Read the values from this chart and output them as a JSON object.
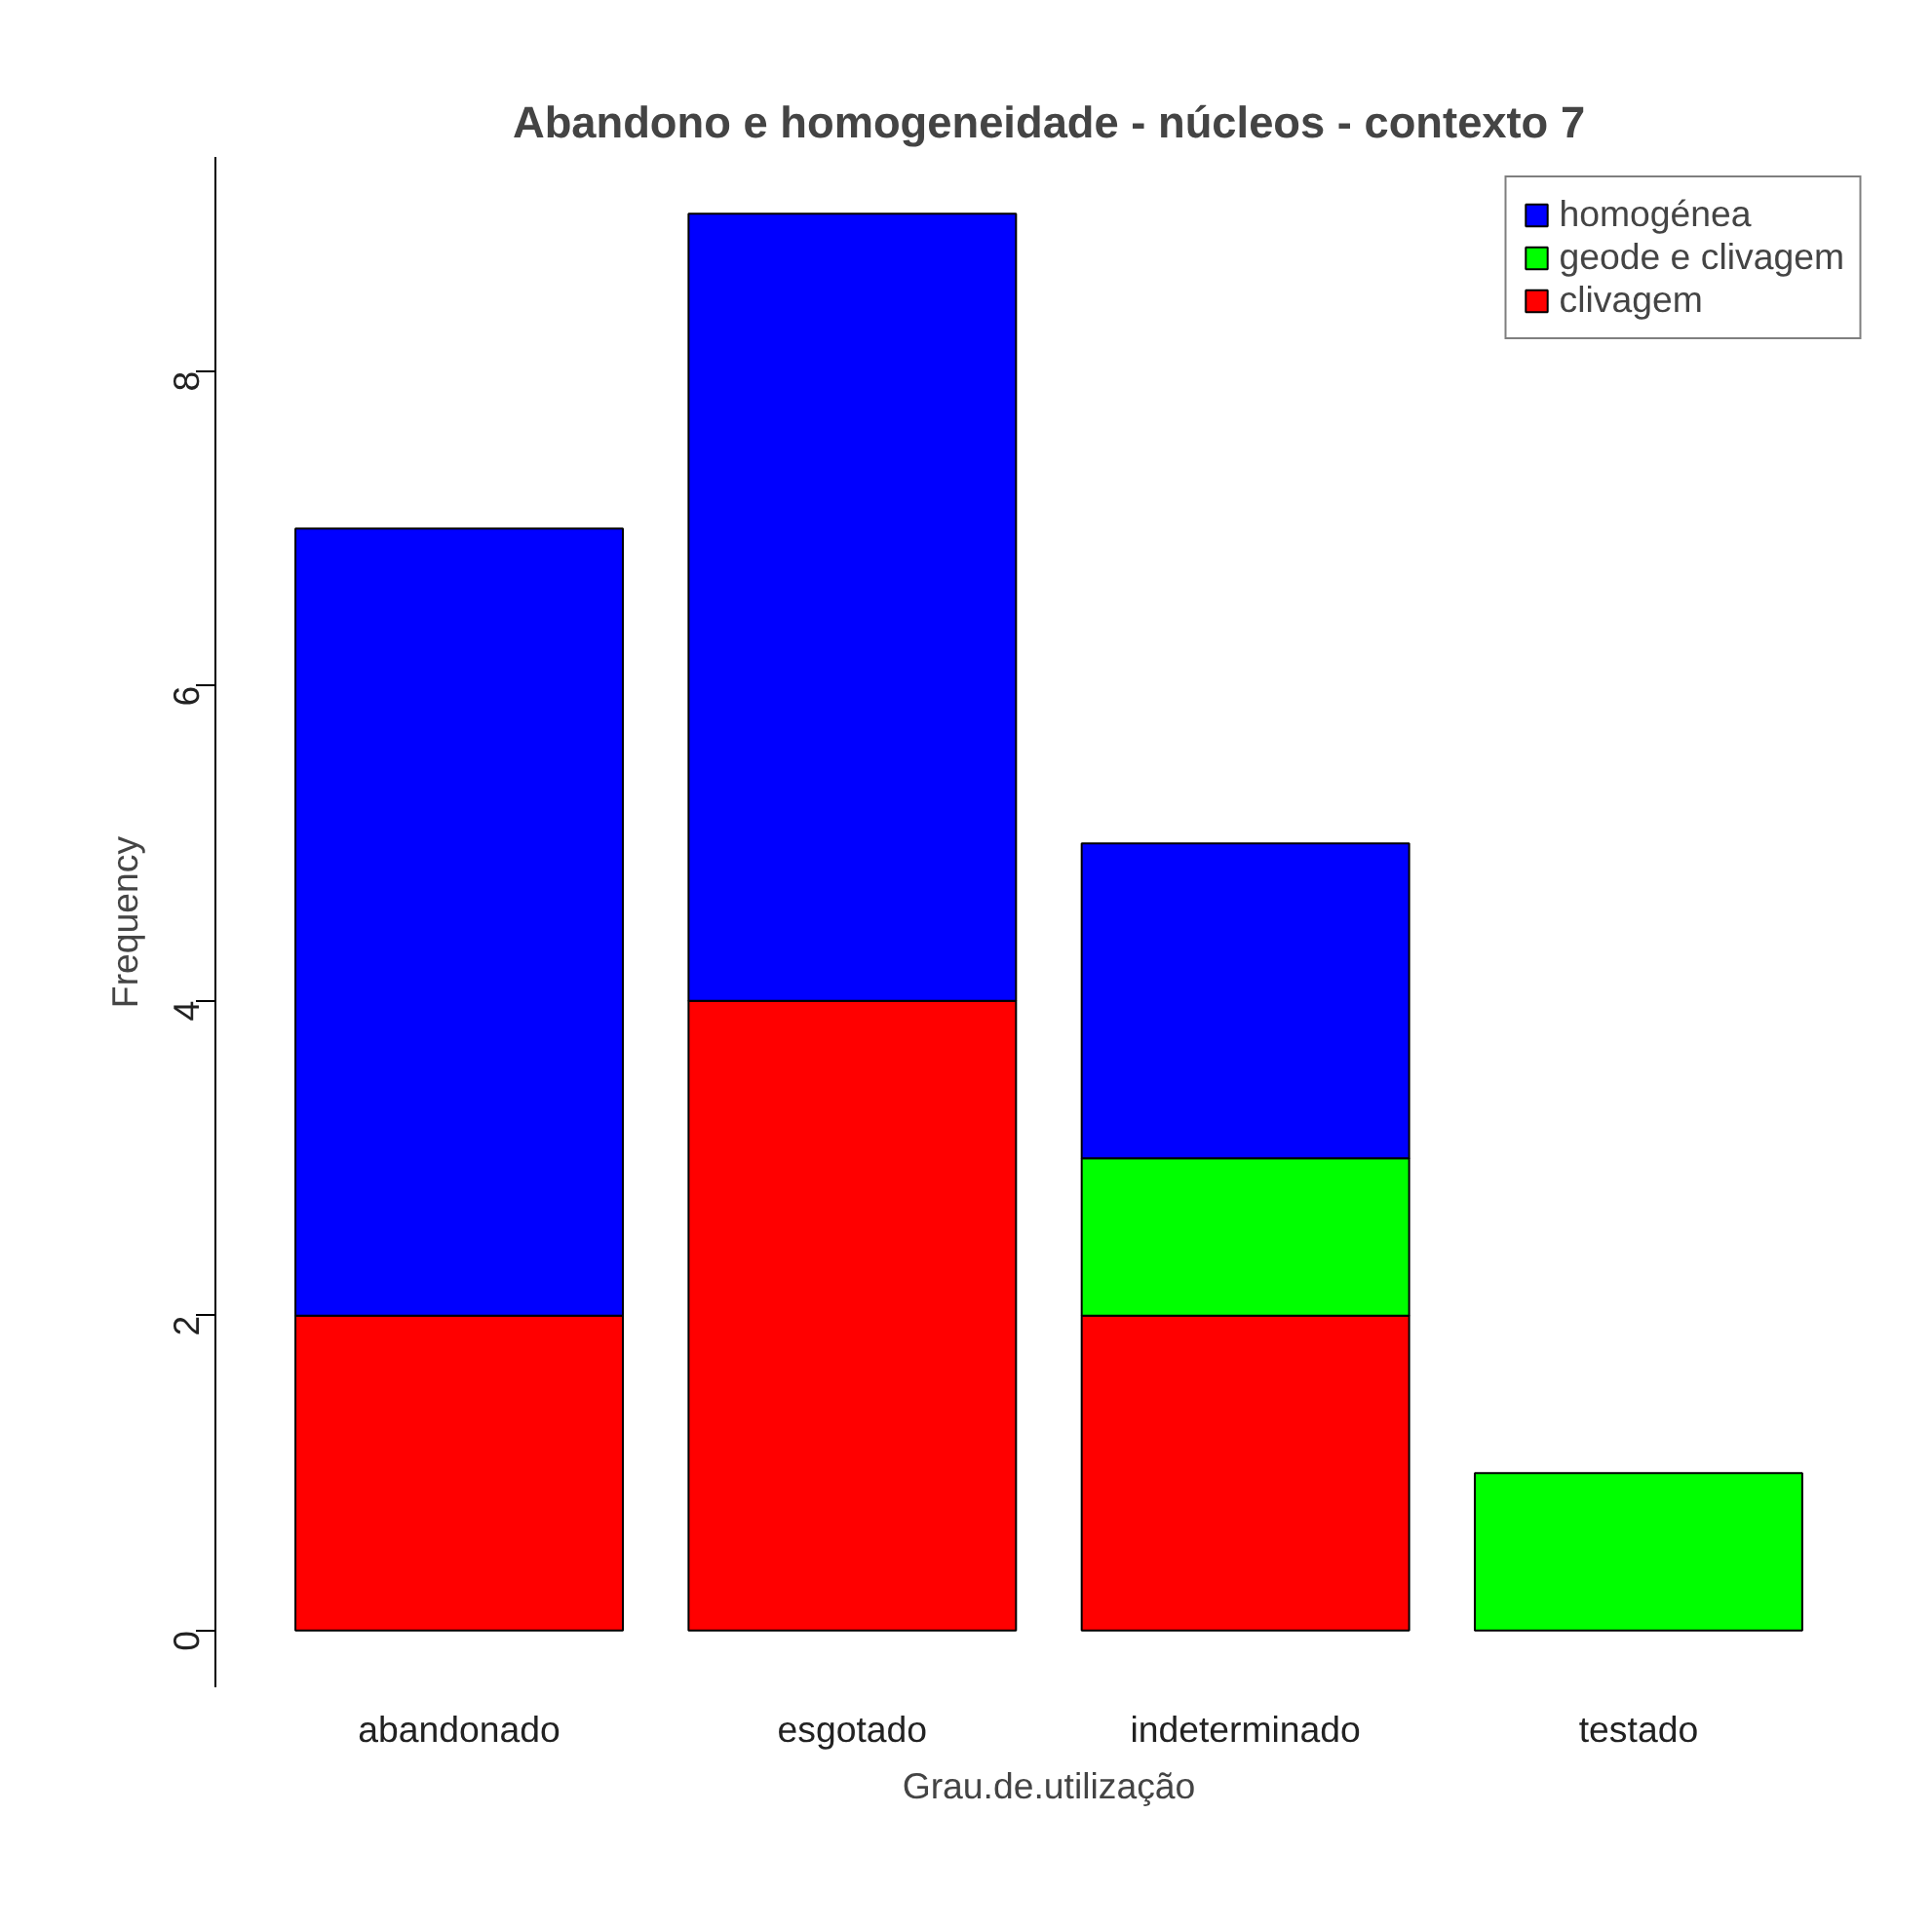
{
  "chart_data": {
    "type": "bar",
    "stacked": true,
    "title": "Abandono e homogeneidade - núcleos - contexto 7",
    "xlabel": "Grau.de.utilização",
    "ylabel": "Frequency",
    "categories": [
      "abandonado",
      "esgotado",
      "indeterminado",
      "testado"
    ],
    "series": [
      {
        "name": "clivagem",
        "color": "#ff0000",
        "values": [
          2,
          4,
          2,
          0
        ]
      },
      {
        "name": "geode e clivagem",
        "color": "#00ff00",
        "values": [
          0,
          0,
          1,
          1
        ]
      },
      {
        "name": "homogénea",
        "color": "#0000ff",
        "values": [
          5,
          5,
          2,
          0
        ]
      }
    ],
    "ylim": [
      -0.36,
      9.36
    ],
    "yticks": [
      0,
      2,
      4,
      6,
      8
    ],
    "grid": false,
    "legend": "top right"
  }
}
